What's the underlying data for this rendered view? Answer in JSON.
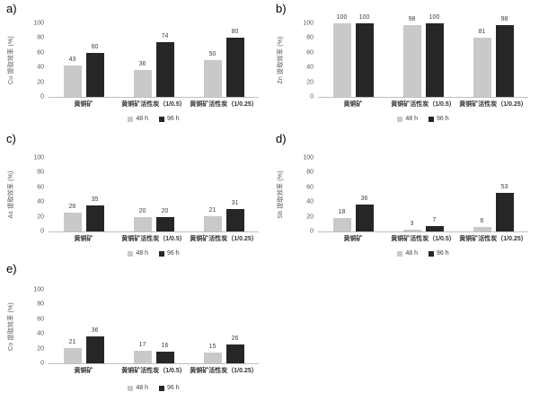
{
  "figure": {
    "description": "Five grouped bar charts (a-e) of extraction efficiency at 48 h and 96 h",
    "series_colors": {
      "h48": "#c9c9c9",
      "h96": "#262626"
    }
  },
  "chart_data": [
    {
      "type": "bar",
      "panel": "a)",
      "ylabel": "Cu 提取效率 (%)",
      "ylim": [
        0,
        100
      ],
      "yticks": [
        0,
        20,
        40,
        60,
        80,
        100
      ],
      "categories": [
        "黄铜矿",
        "黄铜矿活性炭（1/0.5）",
        "黄铜矿活性炭（1/0.25）"
      ],
      "series": [
        {
          "name": "48 h",
          "color": "#c9c9c9",
          "values": [
            43,
            36,
            50
          ]
        },
        {
          "name": "96 h",
          "color": "#262626",
          "values": [
            60,
            74,
            80
          ]
        }
      ],
      "legend_position": "bottom",
      "grid": false
    },
    {
      "type": "bar",
      "panel": "b)",
      "ylabel": "Zn 提取效率 (%)",
      "ylim": [
        0,
        100
      ],
      "yticks": [
        0,
        20,
        40,
        60,
        80,
        100
      ],
      "categories": [
        "黄铜矿",
        "黄铜矿活性炭（1/0.5）",
        "黄铜矿活性炭（1/0.25）"
      ],
      "series": [
        {
          "name": "48 h",
          "color": "#c9c9c9",
          "values": [
            100,
            98,
            81
          ]
        },
        {
          "name": "96 h",
          "color": "#262626",
          "values": [
            100,
            100,
            98
          ]
        }
      ],
      "legend_position": "bottom",
      "grid": false
    },
    {
      "type": "bar",
      "panel": "c)",
      "ylabel": "As 提取效率 (%)",
      "ylim": [
        0,
        100
      ],
      "yticks": [
        0,
        20,
        40,
        60,
        80,
        100
      ],
      "categories": [
        "黄铜矿",
        "黄铜矿活性炭（1/0.5）",
        "黄铜矿活性炭（1/0.25）"
      ],
      "series": [
        {
          "name": "48 h",
          "color": "#c9c9c9",
          "values": [
            26,
            20,
            21
          ]
        },
        {
          "name": "96 h",
          "color": "#262626",
          "values": [
            35,
            20,
            31
          ]
        }
      ],
      "legend_position": "bottom",
      "grid": false
    },
    {
      "type": "bar",
      "panel": "d)",
      "ylabel": "Sb 提取效率 (%)",
      "ylim": [
        0,
        100
      ],
      "yticks": [
        0,
        20,
        40,
        60,
        80,
        100
      ],
      "categories": [
        "黄铜矿",
        "黄铜矿活性炭（1/0.5）",
        "黄铜矿活性炭（1/0.25）"
      ],
      "series": [
        {
          "name": "48 h",
          "color": "#c9c9c9",
          "values": [
            18,
            3,
            6
          ]
        },
        {
          "name": "96 h",
          "color": "#262626",
          "values": [
            36,
            7,
            53
          ]
        }
      ],
      "legend_position": "bottom",
      "grid": false
    },
    {
      "type": "bar",
      "panel": "e)",
      "ylabel": "Co 提取效率 (%)",
      "ylim": [
        0,
        100
      ],
      "yticks": [
        0,
        20,
        40,
        60,
        80,
        100
      ],
      "categories": [
        "黄铜矿",
        "黄铜矿活性炭（1/0.5）",
        "黄铜矿活性炭（1/0.25）"
      ],
      "series": [
        {
          "name": "48 h",
          "color": "#c9c9c9",
          "values": [
            21,
            17,
            15
          ]
        },
        {
          "name": "96 h",
          "color": "#262626",
          "values": [
            36,
            16,
            26
          ]
        }
      ],
      "legend_position": "bottom",
      "grid": false
    }
  ]
}
